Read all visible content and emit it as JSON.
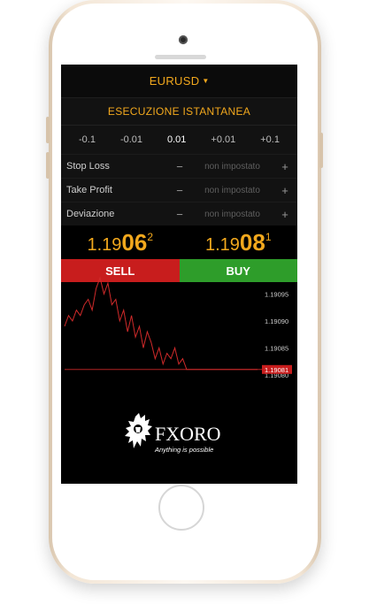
{
  "symbol": "EURUSD",
  "execution_title": "ESECUZIONE ISTANTANEA",
  "lot_steps": [
    "-0.1",
    "-0.01",
    "0.01",
    "+0.01",
    "+0.1"
  ],
  "params": [
    {
      "label": "Stop Loss",
      "minus": "−",
      "value": "non impostato",
      "plus": "+"
    },
    {
      "label": "Take Profit",
      "minus": "−",
      "value": "non impostato",
      "plus": "+"
    },
    {
      "label": "Deviazione",
      "minus": "−",
      "value": "non impostato",
      "plus": "+"
    }
  ],
  "sell_price": {
    "prefix": "1.19",
    "big": "06",
    "sup": "2"
  },
  "buy_price": {
    "prefix": "1.19",
    "big": "08",
    "sup": "1"
  },
  "sell_label": "SELL",
  "buy_label": "BUY",
  "chart_data": {
    "type": "line",
    "title": "",
    "xlabel": "",
    "ylabel": "",
    "y_ticks": [
      "1.19095",
      "1.19090",
      "1.19085",
      "1.19080"
    ],
    "current_price_label": "1.19081",
    "ylim": [
      1.19079,
      1.19099
    ],
    "values": [
      1.19089,
      1.19091,
      1.1909,
      1.19092,
      1.19091,
      1.19093,
      1.19094,
      1.19092,
      1.19096,
      1.19098,
      1.19095,
      1.19097,
      1.19093,
      1.19094,
      1.1909,
      1.19092,
      1.19088,
      1.19091,
      1.19087,
      1.19089,
      1.19085,
      1.19088,
      1.19086,
      1.19083,
      1.19085,
      1.19082,
      1.19084,
      1.19083,
      1.19085,
      1.19082,
      1.19083,
      1.19081,
      1.19081,
      1.19081,
      1.19081,
      1.19081,
      1.19081,
      1.19081,
      1.19081,
      1.19081,
      1.19081,
      1.19081,
      1.19081,
      1.19081,
      1.19081,
      1.19081,
      1.19081,
      1.19081,
      1.19081,
      1.19081
    ]
  },
  "logo": {
    "name": "FXORO",
    "tagline": "Anything is possible"
  },
  "colors": {
    "accent": "#f2a81d",
    "sell": "#c81d1d",
    "buy": "#2e9d2a",
    "line": "#d02a2a"
  }
}
